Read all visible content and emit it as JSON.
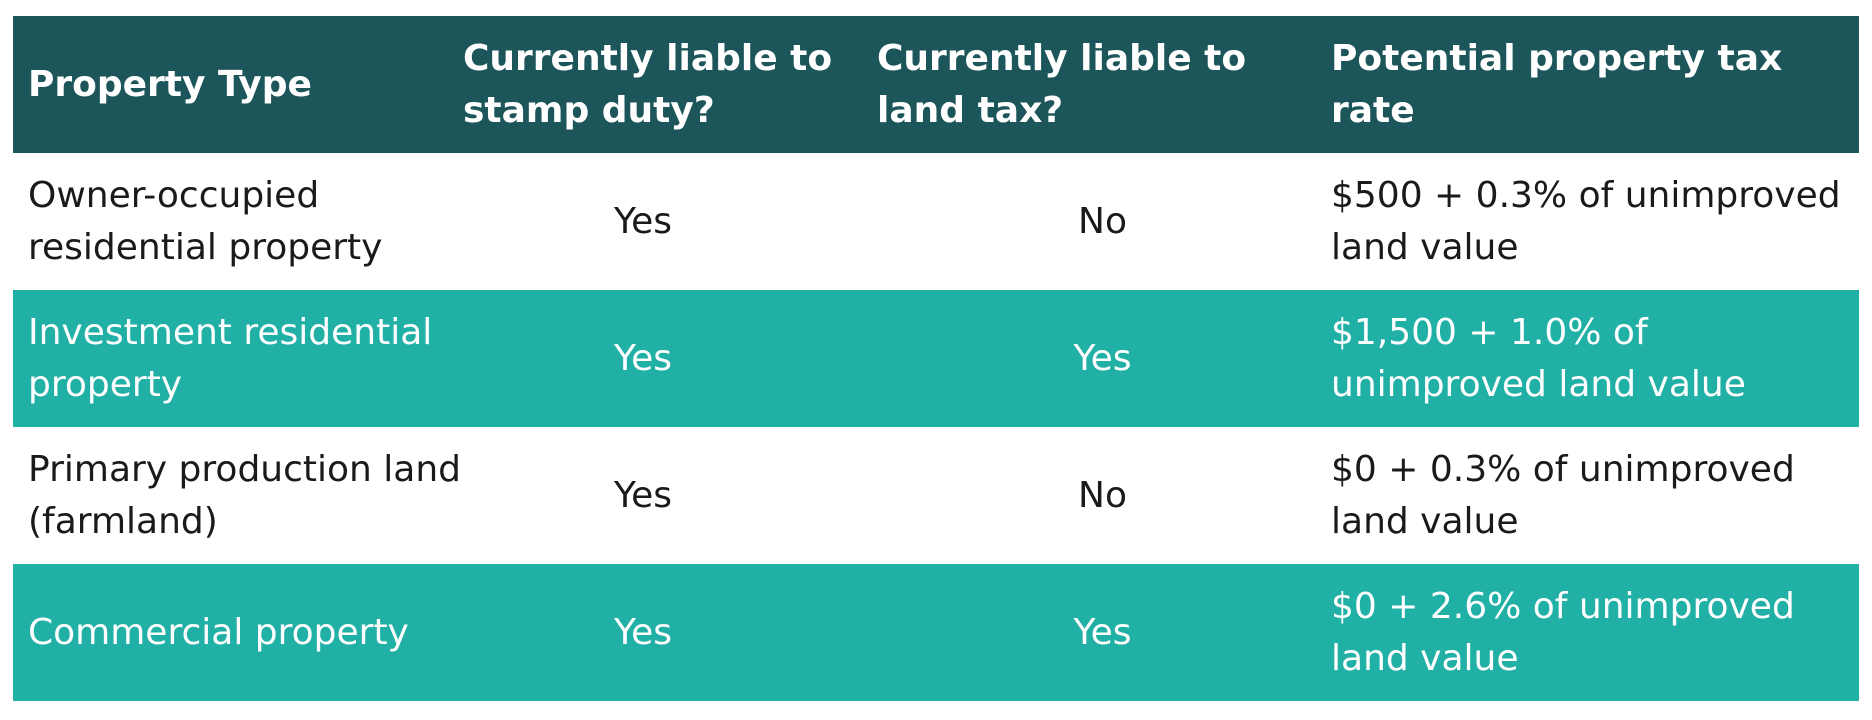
{
  "table": {
    "headers": [
      "Property Type",
      "Currently liable to stamp duty?",
      "Currently liable to land tax?",
      "Potential property tax rate"
    ],
    "rows": [
      [
        "Owner-occupied residential property",
        "Yes",
        "No",
        "$500 + 0.3% of unimproved land value"
      ],
      [
        "Investment residential property",
        "Yes",
        "Yes",
        "$1,500 + 1.0% of unimproved land value"
      ],
      [
        "Primary production land (farmland)",
        "Yes",
        "No",
        "$0 + 0.3% of unimproved land value"
      ],
      [
        "Commercial property",
        "Yes",
        "Yes",
        "$0 + 2.6% of unimproved land value"
      ]
    ]
  },
  "colors": {
    "header_bg": "#1c555a",
    "teal_row_bg": "#21b0a6",
    "white_row_bg": "#ffffff",
    "header_text": "#ffffff",
    "dark_text": "#1a1a1a"
  }
}
